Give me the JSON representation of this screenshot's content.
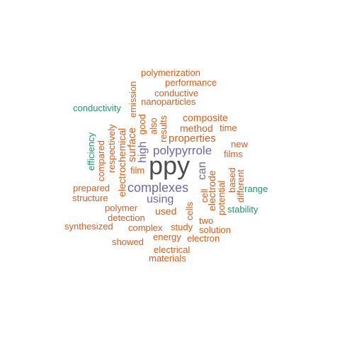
{
  "colors": {
    "dark": "#4d4d4d",
    "purple": "#6e66ad",
    "orange": "#d35f1c",
    "green": "#259072"
  },
  "words": [
    {
      "text": "ppy",
      "color": "dark"
    },
    {
      "text": "complexes",
      "color": "purple"
    },
    {
      "text": "polypyrrole",
      "color": "purple"
    },
    {
      "text": "using",
      "color": "purple"
    },
    {
      "text": "high",
      "color": "purple"
    },
    {
      "text": "can",
      "color": "purple"
    },
    {
      "text": "properties",
      "color": "orange"
    },
    {
      "text": "surface",
      "color": "orange"
    },
    {
      "text": "used",
      "color": "orange"
    },
    {
      "text": "method",
      "color": "orange"
    },
    {
      "text": "composite",
      "color": "orange"
    },
    {
      "text": "electrode",
      "color": "orange"
    },
    {
      "text": "electrochemical",
      "color": "orange"
    },
    {
      "text": "polymerization",
      "color": "orange"
    },
    {
      "text": "performance",
      "color": "orange"
    },
    {
      "text": "conductive",
      "color": "orange"
    },
    {
      "text": "nanoparticles",
      "color": "orange"
    },
    {
      "text": "emission",
      "color": "orange"
    },
    {
      "text": "good",
      "color": "orange"
    },
    {
      "text": "also",
      "color": "orange"
    },
    {
      "text": "results",
      "color": "orange"
    },
    {
      "text": "time",
      "color": "orange"
    },
    {
      "text": "films",
      "color": "orange"
    },
    {
      "text": "new",
      "color": "orange"
    },
    {
      "text": "film",
      "color": "orange"
    },
    {
      "text": "respectively",
      "color": "orange"
    },
    {
      "text": "compared",
      "color": "orange"
    },
    {
      "text": "prepared",
      "color": "orange"
    },
    {
      "text": "structure",
      "color": "orange"
    },
    {
      "text": "polymer",
      "color": "orange"
    },
    {
      "text": "detection",
      "color": "orange"
    },
    {
      "text": "synthesized",
      "color": "orange"
    },
    {
      "text": "complex",
      "color": "orange"
    },
    {
      "text": "study",
      "color": "orange"
    },
    {
      "text": "cells",
      "color": "orange"
    },
    {
      "text": "cell",
      "color": "orange"
    },
    {
      "text": "potential",
      "color": "orange"
    },
    {
      "text": "based",
      "color": "orange"
    },
    {
      "text": "different",
      "color": "orange"
    },
    {
      "text": "two",
      "color": "orange"
    },
    {
      "text": "solution",
      "color": "orange"
    },
    {
      "text": "energy",
      "color": "orange"
    },
    {
      "text": "electron",
      "color": "orange"
    },
    {
      "text": "showed",
      "color": "orange"
    },
    {
      "text": "electrical",
      "color": "orange"
    },
    {
      "text": "materials",
      "color": "orange"
    },
    {
      "text": "conductivity",
      "color": "green"
    },
    {
      "text": "efficiency",
      "color": "green"
    },
    {
      "text": "range",
      "color": "green"
    },
    {
      "text": "stability",
      "color": "green"
    }
  ]
}
